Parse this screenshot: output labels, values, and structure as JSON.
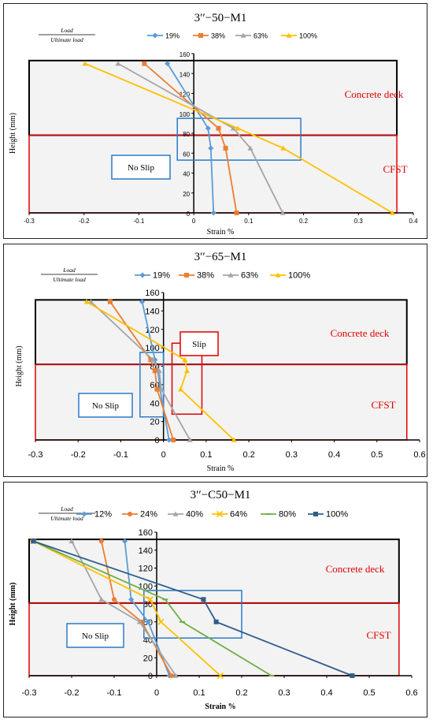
{
  "legend_header": {
    "num": "Load",
    "den": "Ultimate load"
  },
  "chart_data": [
    {
      "type": "line",
      "title": "3′′−50−M1",
      "xlabel": "Strain %",
      "ylabel": "Height (mm)",
      "xlim": [
        -0.3,
        0.4
      ],
      "ylim": [
        0,
        160
      ],
      "xticks": [
        "-0.3",
        "-0.2",
        "-0.1",
        "0",
        "0.1",
        "0.2",
        "0.3",
        "0.4"
      ],
      "yticks": [
        "0",
        "20",
        "40",
        "60",
        "80",
        "100",
        "120",
        "140",
        "160"
      ],
      "series": [
        {
          "name": "19%",
          "color": "#5B9BD5",
          "marker": "diamond",
          "x": [
            0.036,
            0.031,
            0.026,
            -0.048
          ],
          "y": [
            0,
            65,
            85,
            150
          ]
        },
        {
          "name": "38%",
          "color": "#ED7D31",
          "marker": "square",
          "x": [
            0.078,
            0.058,
            0.045,
            -0.09
          ],
          "y": [
            0,
            65,
            85,
            150
          ]
        },
        {
          "name": "63%",
          "color": "#A5A5A5",
          "marker": "triangle",
          "x": [
            0.162,
            0.103,
            0.072,
            -0.138
          ],
          "y": [
            0,
            65,
            85,
            150
          ]
        },
        {
          "name": "100%",
          "color": "#FFC000",
          "marker": "triangle",
          "x": [
            0.362,
            0.163,
            0.08,
            -0.198
          ],
          "y": [
            0,
            65,
            85,
            150
          ]
        }
      ],
      "regions": {
        "deck": "Concrete deck",
        "cfst": "CFST",
        "deck_range": [
          78,
          153
        ],
        "cfst_range": [
          0,
          78
        ]
      },
      "annotations": [
        {
          "text": "No Slip",
          "box": {
            "x": [
              -0.03,
              0.195
            ],
            "y": [
              53,
              95
            ]
          }
        }
      ]
    },
    {
      "type": "line",
      "title": "3′′−65−M1",
      "xlabel": "Strain %",
      "ylabel": "Height (mm)",
      "xlim": [
        -0.3,
        0.6
      ],
      "ylim": [
        0,
        160
      ],
      "xticks": [
        "-0.3",
        "-0.2",
        "-0.1",
        "0",
        "0.1",
        "0.2",
        "0.3",
        "0.4",
        "0.5",
        "0.6"
      ],
      "yticks": [
        "0",
        "20",
        "40",
        "60",
        "80",
        "100",
        "120",
        "140",
        "160"
      ],
      "series": [
        {
          "name": "19%",
          "color": "#5B9BD5",
          "marker": "diamond",
          "x": [
            0.013,
            -0.008,
            -0.013,
            -0.02,
            -0.05
          ],
          "y": [
            0,
            55,
            75,
            87,
            150
          ]
        },
        {
          "name": "38%",
          "color": "#ED7D31",
          "marker": "square",
          "x": [
            0.023,
            -0.015,
            -0.02,
            -0.03,
            -0.125
          ],
          "y": [
            0,
            55,
            75,
            87,
            150
          ]
        },
        {
          "name": "63%",
          "color": "#A5A5A5",
          "marker": "triangle",
          "x": [
            0.062,
            -0.005,
            -0.01,
            -0.025,
            -0.17
          ],
          "y": [
            0,
            55,
            75,
            87,
            150
          ]
        },
        {
          "name": "100%",
          "color": "#FFC000",
          "marker": "triangle",
          "x": [
            0.165,
            0.04,
            0.055,
            0.05,
            -0.18
          ],
          "y": [
            0,
            55,
            75,
            87,
            150
          ]
        }
      ],
      "regions": {
        "deck": "Concrete deck",
        "cfst": "CFST",
        "deck_range": [
          82,
          152
        ],
        "cfst_range": [
          0,
          82
        ]
      },
      "annotations": [
        {
          "text": "Slip",
          "box": {
            "x": [
              0.02,
              0.09
            ],
            "y": [
              28,
              105
            ]
          }
        },
        {
          "text": "No Slip",
          "box": {
            "x": [
              -0.055,
              0.0
            ],
            "y": [
              25,
              95
            ]
          }
        }
      ]
    },
    {
      "type": "line",
      "title": "3′′−C50−M1",
      "xlabel": "Strain %",
      "ylabel": "Height (mm)",
      "xlim": [
        -0.3,
        0.6
      ],
      "ylim": [
        0,
        160
      ],
      "xticks": [
        "-0.3",
        "-0.2",
        "-0.1",
        "0",
        "0.1",
        "0.2",
        "0.3",
        "0.4",
        "0.5",
        "0.6"
      ],
      "yticks": [
        "0",
        "20",
        "40",
        "60",
        "80",
        "100",
        "120",
        "140",
        "160"
      ],
      "series": [
        {
          "name": "12%",
          "color": "#5B9BD5",
          "marker": "diamond",
          "x": [
            0.03,
            -0.02,
            -0.06,
            -0.075
          ],
          "y": [
            0,
            60,
            85,
            150
          ]
        },
        {
          "name": "24%",
          "color": "#ED7D31",
          "marker": "circle",
          "x": [
            0.035,
            -0.035,
            -0.1,
            -0.13
          ],
          "y": [
            0,
            60,
            85,
            150
          ]
        },
        {
          "name": "40%",
          "color": "#A5A5A5",
          "marker": "triangle",
          "x": [
            0.045,
            -0.04,
            -0.13,
            -0.2
          ],
          "y": [
            0,
            60,
            85,
            150
          ]
        },
        {
          "name": "64%",
          "color": "#FFC000",
          "marker": "x",
          "x": [
            0.15,
            0.01,
            -0.015,
            -0.29
          ],
          "y": [
            0,
            60,
            85,
            150
          ]
        },
        {
          "name": "80%",
          "color": "#70AD47",
          "marker": "line",
          "x": [
            0.27,
            0.06,
            0.02,
            -0.29
          ],
          "y": [
            0,
            60,
            85,
            150
          ]
        },
        {
          "name": "100%",
          "color": "#2E5E8C",
          "marker": "square",
          "x": [
            0.46,
            0.14,
            0.11,
            -0.29
          ],
          "y": [
            0,
            60,
            85,
            150
          ]
        }
      ],
      "regions": {
        "deck": "Concrete deck",
        "cfst": "CFST",
        "deck_range": [
          81,
          152
        ],
        "cfst_range": [
          0,
          81
        ]
      },
      "annotations": [
        {
          "text": "No Slip",
          "box": {
            "x": [
              -0.03,
              0.2
            ],
            "y": [
              42,
              95
            ]
          }
        }
      ]
    }
  ]
}
